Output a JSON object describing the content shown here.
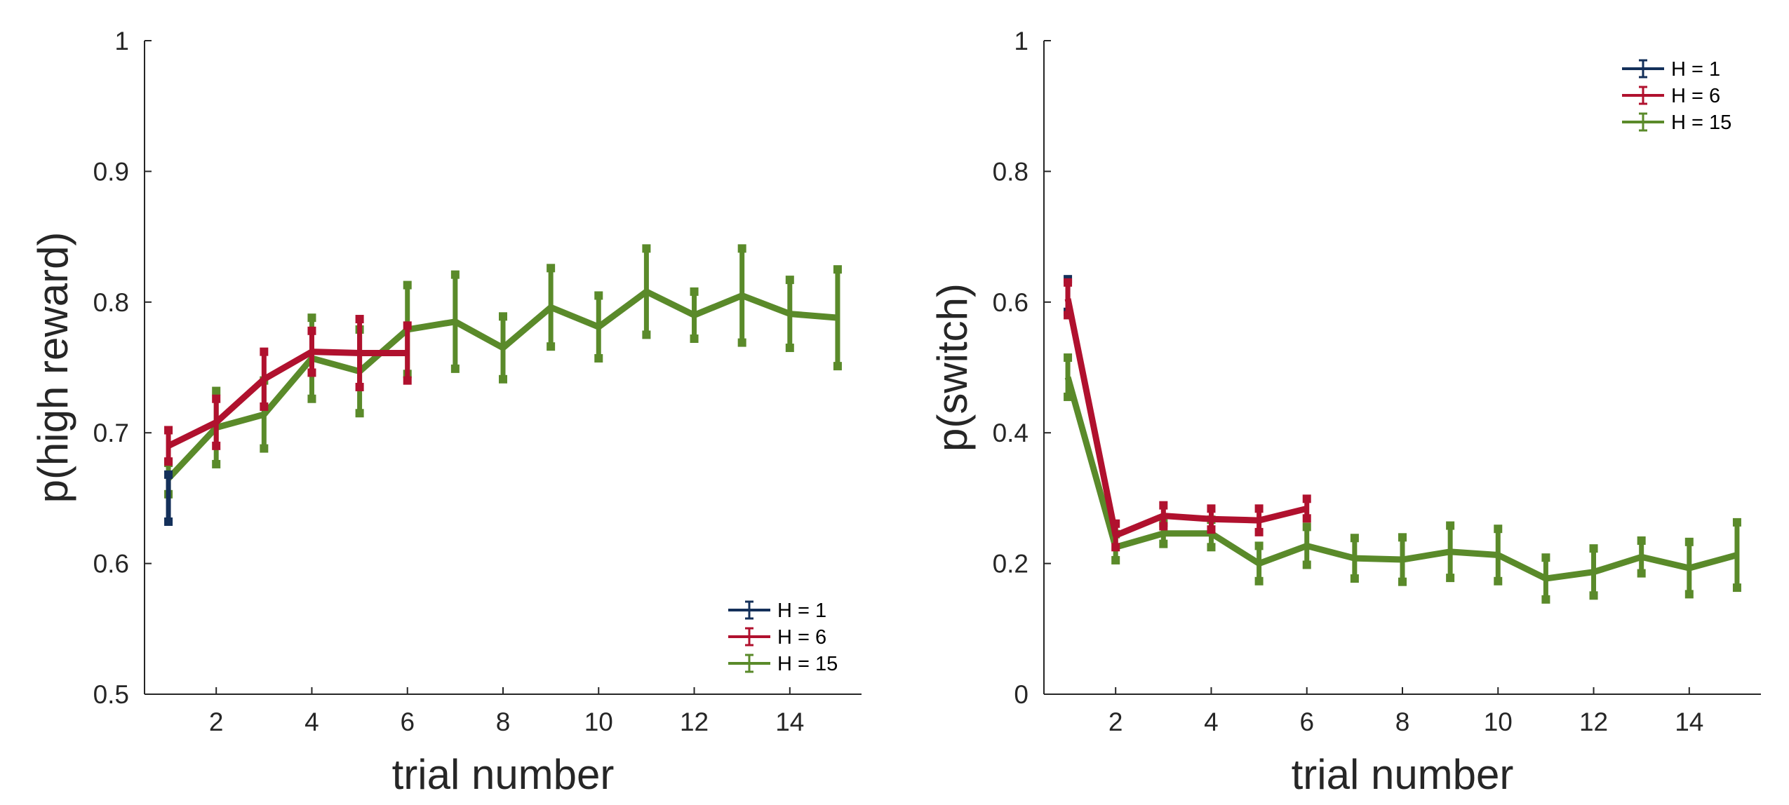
{
  "chart_data": [
    {
      "type": "line",
      "title": "",
      "xlabel": "trial number",
      "ylabel": "p(high reward)",
      "xlim": [
        0.5,
        15.5
      ],
      "ylim": [
        0.5,
        1
      ],
      "xticks": [
        "2",
        "4",
        "6",
        "8",
        "10",
        "12",
        "14"
      ],
      "yticks": [
        "0.5",
        "0.6",
        "0.7",
        "0.8",
        "0.9",
        "1"
      ],
      "grid": false,
      "legend": "bottom-right",
      "series": [
        {
          "name": "H = 1",
          "color": "#14305a",
          "x": [
            1
          ],
          "y": [
            0.65
          ],
          "err": [
            0.018
          ]
        },
        {
          "name": "H = 6",
          "color": "#b0112e",
          "x": [
            1,
            2,
            3,
            4,
            5,
            6
          ],
          "y": [
            0.69,
            0.708,
            0.741,
            0.762,
            0.761,
            0.761
          ],
          "err": [
            0.012,
            0.018,
            0.021,
            0.016,
            0.026,
            0.021
          ]
        },
        {
          "name": "H = 15",
          "color": "#5a8a2a",
          "x": [
            1,
            2,
            3,
            4,
            5,
            6,
            7,
            8,
            9,
            10,
            11,
            12,
            13,
            14,
            15
          ],
          "y": [
            0.665,
            0.704,
            0.714,
            0.757,
            0.747,
            0.779,
            0.785,
            0.765,
            0.796,
            0.781,
            0.808,
            0.79,
            0.805,
            0.791,
            0.788
          ],
          "err": [
            0.012,
            0.028,
            0.026,
            0.031,
            0.032,
            0.034,
            0.036,
            0.024,
            0.03,
            0.024,
            0.033,
            0.018,
            0.036,
            0.026,
            0.037
          ]
        }
      ]
    },
    {
      "type": "line",
      "title": "",
      "xlabel": "trial number",
      "ylabel": "p(switch)",
      "xlim": [
        0.5,
        15.5
      ],
      "ylim": [
        0,
        1
      ],
      "xticks": [
        "2",
        "4",
        "6",
        "8",
        "10",
        "12",
        "14"
      ],
      "yticks": [
        "0",
        "0.2",
        "0.4",
        "0.6",
        "0.8",
        "1"
      ],
      "grid": false,
      "legend": "top-right",
      "series": [
        {
          "name": "H = 1",
          "color": "#14305a",
          "x": [
            1
          ],
          "y": [
            0.61
          ],
          "err": [
            0.025
          ]
        },
        {
          "name": "H = 6",
          "color": "#b0112e",
          "x": [
            1,
            2,
            3,
            4,
            5,
            6
          ],
          "y": [
            0.605,
            0.243,
            0.273,
            0.268,
            0.266,
            0.284
          ],
          "err": [
            0.025,
            0.018,
            0.016,
            0.016,
            0.018,
            0.015
          ]
        },
        {
          "name": "H = 15",
          "color": "#5a8a2a",
          "x": [
            1,
            2,
            3,
            4,
            5,
            6,
            7,
            8,
            9,
            10,
            11,
            12,
            13,
            14,
            15
          ],
          "y": [
            0.485,
            0.225,
            0.246,
            0.246,
            0.2,
            0.227,
            0.208,
            0.206,
            0.218,
            0.213,
            0.177,
            0.187,
            0.21,
            0.193,
            0.213
          ],
          "err": [
            0.03,
            0.02,
            0.016,
            0.021,
            0.027,
            0.029,
            0.031,
            0.034,
            0.04,
            0.04,
            0.032,
            0.036,
            0.025,
            0.04,
            0.05
          ]
        }
      ]
    }
  ]
}
